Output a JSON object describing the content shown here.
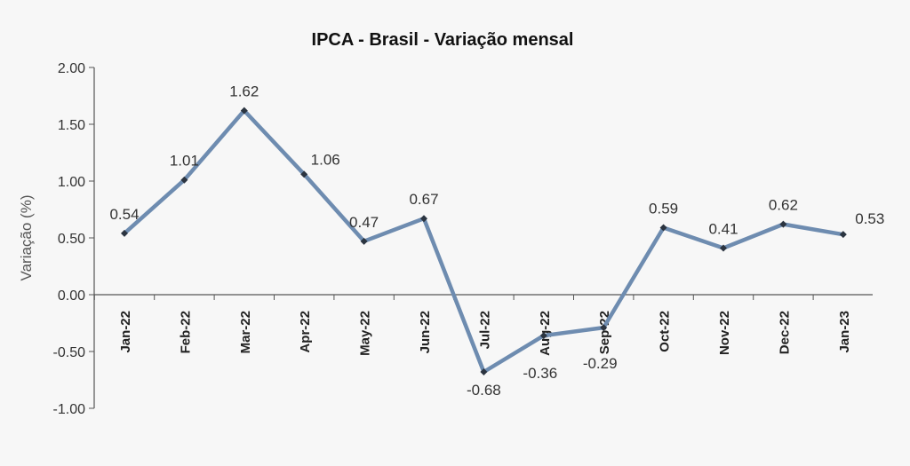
{
  "chart_data": {
    "type": "line",
    "title": "IPCA - Brasil - Variação mensal",
    "xlabel": "",
    "ylabel": "Variação (%)",
    "categories": [
      "Jan-22",
      "Feb-22",
      "Mar-22",
      "Apr-22",
      "May-22",
      "Jun-22",
      "Jul-22",
      "Aug-22",
      "Sep-22",
      "Oct-22",
      "Nov-22",
      "Dec-22",
      "Jan-23"
    ],
    "values": [
      0.54,
      1.01,
      1.62,
      1.06,
      0.47,
      0.67,
      -0.68,
      -0.36,
      -0.29,
      0.59,
      0.41,
      0.62,
      0.53
    ],
    "data_labels": [
      "0.54",
      "1.01",
      "1.62",
      "1.06",
      "0.47",
      "0.67",
      "-0.68",
      "-0.36",
      "-0.29",
      "0.59",
      "0.41",
      "0.62",
      "0.53"
    ],
    "y_ticks": [
      "2.00",
      "1.50",
      "1.00",
      "0.50",
      "0.00",
      "-0.50",
      "-1.00"
    ],
    "ylim": [
      -1.0,
      2.0
    ],
    "grid": false,
    "legend": "none",
    "line_color": "#6e8cb0",
    "marker_color": "#2b3440"
  }
}
